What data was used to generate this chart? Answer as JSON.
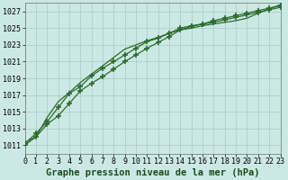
{
  "title": "Graphe pression niveau de la mer (hPa)",
  "background_color": "#cce8e4",
  "grid_color": "#aacfc8",
  "line_color": "#2d6a2d",
  "marker_color": "#2d6a2d",
  "x_ticks": [
    0,
    1,
    2,
    3,
    4,
    5,
    6,
    7,
    8,
    9,
    10,
    11,
    12,
    13,
    14,
    15,
    16,
    17,
    18,
    19,
    20,
    21,
    22,
    23
  ],
  "y_ticks": [
    1011,
    1013,
    1015,
    1017,
    1019,
    1021,
    1023,
    1025,
    1027
  ],
  "ylim": [
    1010.0,
    1028.0
  ],
  "xlim": [
    0,
    23
  ],
  "series": [
    [
      1011.2,
      1012.4,
      1013.8,
      1015.5,
      1017.2,
      1018.0,
      1019.3,
      1020.2,
      1021.0,
      1021.8,
      1022.6,
      1023.4,
      1023.8,
      1024.4,
      1025.0,
      1025.3,
      1025.5,
      1025.7,
      1026.0,
      1026.3,
      1026.6,
      1026.9,
      1027.2,
      1027.5
    ],
    [
      1011.0,
      1012.0,
      1013.5,
      1014.5,
      1016.0,
      1017.5,
      1018.4,
      1019.2,
      1020.1,
      1021.0,
      1021.8,
      1022.6,
      1023.3,
      1024.0,
      1024.8,
      1025.2,
      1025.5,
      1025.9,
      1026.2,
      1026.5,
      1026.8,
      1027.1,
      1027.4,
      1027.7
    ],
    [
      1011.3,
      1012.0,
      1014.3,
      1016.2,
      1017.3,
      1018.5,
      1019.5,
      1020.5,
      1021.5,
      1022.5,
      1023.0,
      1023.5,
      1023.9,
      1024.4,
      1024.8,
      1025.0,
      1025.3,
      1025.5,
      1025.7,
      1025.9,
      1026.2,
      1026.8,
      1027.3,
      1027.8
    ]
  ],
  "marker_series": [
    0,
    1
  ],
  "title_fontsize": 7.5,
  "tick_fontsize": 6.0,
  "title_color": "#1a4d1a",
  "font_family": "monospace"
}
